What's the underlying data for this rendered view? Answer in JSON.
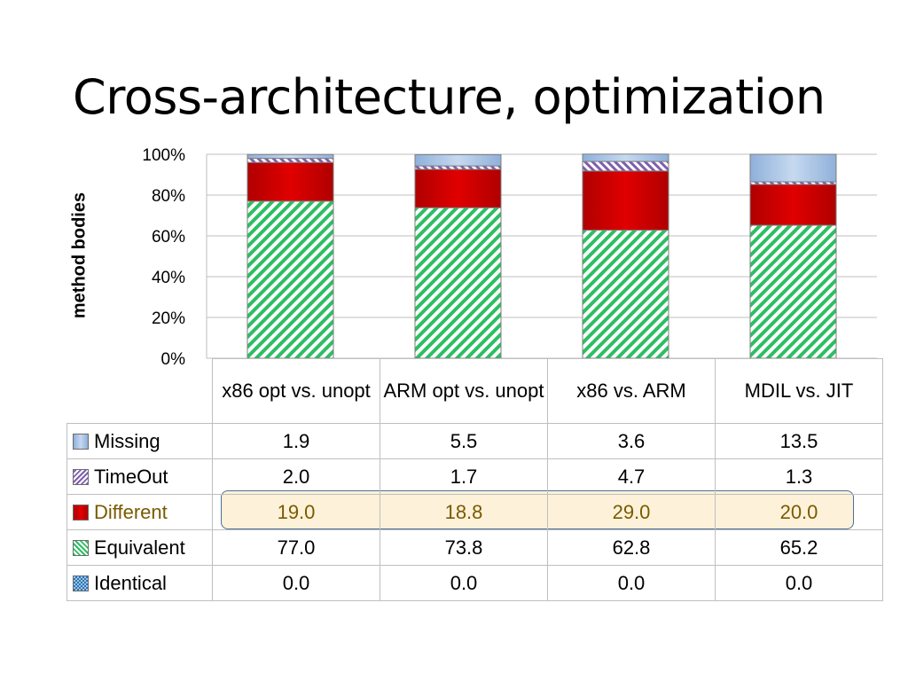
{
  "slide": {
    "title": "Cross-architecture, optimization"
  },
  "chart_data": {
    "type": "bar",
    "stacked": true,
    "ylabel": "method bodies",
    "ylim": [
      0,
      100
    ],
    "yticks": [
      "0%",
      "20%",
      "40%",
      "60%",
      "80%",
      "100%"
    ],
    "grid": true,
    "categories": [
      "x86 opt vs. unopt",
      "ARM opt vs. unopt",
      "x86 vs. ARM",
      "MDIL vs. JIT"
    ],
    "series": [
      {
        "name": "Identical",
        "values": [
          0.0,
          0.0,
          0.0,
          0.0
        ],
        "display": [
          "0.0",
          "0.0",
          "0.0",
          "0.0"
        ],
        "color": "#2e74b5"
      },
      {
        "name": "Equivalent",
        "values": [
          77.0,
          73.8,
          62.8,
          65.2
        ],
        "display": [
          "77.0",
          "73.8",
          "62.8",
          "65.2"
        ],
        "color": "#2dbe63"
      },
      {
        "name": "Different",
        "values": [
          19.0,
          18.8,
          29.0,
          20.0
        ],
        "display": [
          "19.0",
          "18.8",
          "29.0",
          "20.0"
        ],
        "color": "#cc0000"
      },
      {
        "name": "TimeOut",
        "values": [
          2.0,
          1.7,
          4.7,
          1.3
        ],
        "display": [
          "2.0",
          "1.7",
          "4.7",
          "1.3"
        ],
        "color": "#7f5fae"
      },
      {
        "name": "Missing",
        "values": [
          1.9,
          5.5,
          3.6,
          13.5
        ],
        "display": [
          "1.9",
          "5.5",
          "3.6",
          "13.5"
        ],
        "color": "#a9c4e6"
      }
    ],
    "table_row_order": [
      "Missing",
      "TimeOut",
      "Different",
      "Equivalent",
      "Identical"
    ],
    "highlighted_series": "Different"
  }
}
